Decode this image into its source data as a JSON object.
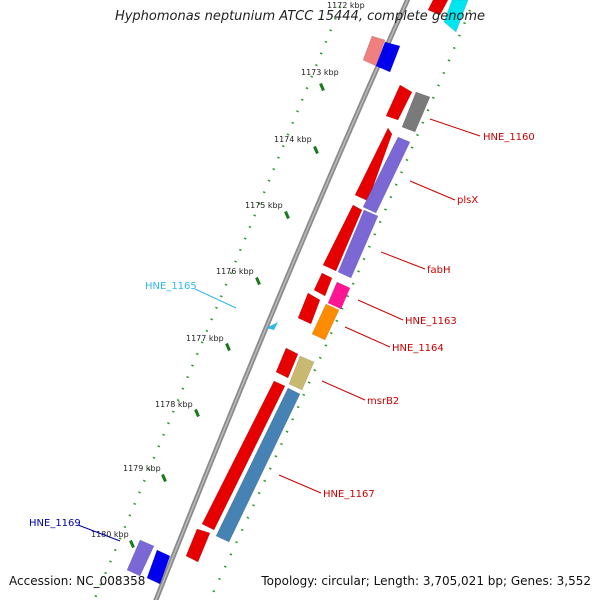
{
  "title": "Hyphomonas neptunium ATCC 15444, complete genome",
  "footer": {
    "accession": "Accession: NC_008358",
    "summary": "Topology: circular; Length: 3,705,021 bp; Genes: 3,552"
  },
  "colors": {
    "background": "#ffffff",
    "backbone": "#8c8c8c",
    "tick_major": "#1a7a1a",
    "tick_minor": "#2a9a2a"
  },
  "ruler": {
    "ticks": [
      {
        "label": "1173 kbp"
      },
      {
        "label": "1174 kbp"
      },
      {
        "label": "1175 kbp"
      },
      {
        "label": "1176 kbp"
      },
      {
        "label": "1177 kbp"
      },
      {
        "label": "1178 kbp"
      },
      {
        "label": "1179 kbp"
      },
      {
        "label": "1180 kbp"
      }
    ],
    "partial_top_label": "1172 kbp"
  },
  "genes": [
    {
      "label": "HNE_1160",
      "color": "#7a7a7a",
      "label_color": "#cc0000"
    },
    {
      "label": "plsX",
      "color": "#7b68d4",
      "label_color": "#cc0000"
    },
    {
      "label": "fabH",
      "color": "#7b68d4",
      "label_color": "#cc0000"
    },
    {
      "label": "HNE_1163",
      "color": "#ff1493",
      "label_color": "#cc0000"
    },
    {
      "label": "HNE_1164",
      "color": "#ff8c00",
      "label_color": "#cc0000"
    },
    {
      "label": "HNE_1165",
      "color": "#30b8e8",
      "label_color": "#30b8e8"
    },
    {
      "label": "msrB2",
      "color": "#c8b870",
      "label_color": "#cc0000"
    },
    {
      "label": "HNE_1167",
      "color": "#4682b4",
      "label_color": "#cc0000"
    },
    {
      "label": "HNE_1169",
      "color": "#7b68d4",
      "label_color": "#0000aa"
    }
  ]
}
